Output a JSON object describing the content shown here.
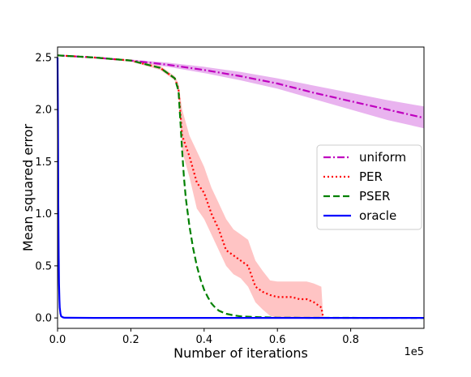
{
  "chart_data": {
    "type": "line",
    "title": "",
    "xlabel": "Number of iterations",
    "ylabel": "Mean squared error",
    "x_offset_label": "1e5",
    "xlim": [
      0,
      1.0
    ],
    "ylim": [
      -0.1,
      2.6
    ],
    "xticks": [
      0.0,
      0.2,
      0.4,
      0.6,
      0.8
    ],
    "xtick_labels": [
      "0.0",
      "0.2",
      "0.4",
      "0.6",
      "0.8"
    ],
    "yticks": [
      0.0,
      0.5,
      1.0,
      1.5,
      2.0,
      2.5
    ],
    "ytick_labels": [
      "0.0",
      "0.5",
      "1.0",
      "1.5",
      "2.0",
      "2.5"
    ],
    "grid": false,
    "legend_position": "center-right",
    "series": [
      {
        "name": "uniform",
        "color": "#bf00bf",
        "style": "dashdot",
        "x": [
          0,
          0.1,
          0.2,
          0.3,
          0.4,
          0.5,
          0.6,
          0.7,
          0.8,
          0.9,
          1.0
        ],
        "y": [
          2.52,
          2.5,
          2.47,
          2.43,
          2.38,
          2.32,
          2.25,
          2.16,
          2.08,
          2.0,
          1.92
        ],
        "band_upper": [
          2.52,
          2.5,
          2.48,
          2.45,
          2.41,
          2.36,
          2.3,
          2.23,
          2.16,
          2.09,
          2.03
        ],
        "band_lower": [
          2.52,
          2.49,
          2.46,
          2.41,
          2.35,
          2.28,
          2.2,
          2.1,
          2.0,
          1.9,
          1.82
        ]
      },
      {
        "name": "PER",
        "color": "#ff0000",
        "style": "dotted",
        "x": [
          0,
          0.1,
          0.2,
          0.28,
          0.32,
          0.33,
          0.34,
          0.36,
          0.38,
          0.4,
          0.42,
          0.44,
          0.46,
          0.48,
          0.5,
          0.52,
          0.54,
          0.56,
          0.58,
          0.6,
          0.62,
          0.64,
          0.66,
          0.68,
          0.7,
          0.72,
          0.725
        ],
        "y": [
          2.52,
          2.5,
          2.47,
          2.4,
          2.3,
          2.2,
          1.75,
          1.55,
          1.3,
          1.2,
          1.0,
          0.85,
          0.65,
          0.6,
          0.55,
          0.5,
          0.3,
          0.25,
          0.22,
          0.2,
          0.2,
          0.2,
          0.18,
          0.18,
          0.15,
          0.1,
          0.0
        ],
        "band_upper": [
          2.52,
          2.5,
          2.48,
          2.42,
          2.32,
          2.25,
          2.0,
          1.75,
          1.6,
          1.45,
          1.25,
          1.1,
          0.95,
          0.85,
          0.8,
          0.75,
          0.55,
          0.45,
          0.36,
          0.35,
          0.35,
          0.35,
          0.35,
          0.35,
          0.33,
          0.3,
          0.0
        ],
        "band_lower": [
          2.52,
          2.49,
          2.46,
          2.38,
          2.28,
          2.15,
          1.6,
          1.35,
          1.05,
          0.95,
          0.8,
          0.65,
          0.5,
          0.42,
          0.38,
          0.3,
          0.15,
          0.08,
          0.02,
          0.0,
          0.0,
          0.0,
          0.0,
          0.0,
          0.0,
          0.0,
          0.0
        ]
      },
      {
        "name": "PSER",
        "color": "#008000",
        "style": "dashed",
        "x": [
          0,
          0.1,
          0.2,
          0.28,
          0.32,
          0.33,
          0.335,
          0.34,
          0.345,
          0.35,
          0.36,
          0.37,
          0.38,
          0.39,
          0.4,
          0.41,
          0.42,
          0.43,
          0.44,
          0.46,
          0.48,
          0.5,
          0.55,
          0.6,
          0.7,
          1.0
        ],
        "y": [
          2.52,
          2.5,
          2.47,
          2.4,
          2.3,
          2.18,
          1.9,
          1.6,
          1.35,
          1.15,
          0.88,
          0.67,
          0.5,
          0.37,
          0.27,
          0.2,
          0.14,
          0.1,
          0.07,
          0.04,
          0.025,
          0.015,
          0.007,
          0.003,
          0.001,
          0.0
        ]
      },
      {
        "name": "oracle",
        "color": "#0000ff",
        "style": "solid",
        "x": [
          0,
          0.001,
          0.002,
          0.003,
          0.004,
          0.005,
          0.006,
          0.008,
          0.01,
          0.015,
          0.02,
          0.1,
          1.0
        ],
        "y": [
          2.5,
          1.9,
          1.1,
          0.6,
          0.33,
          0.18,
          0.1,
          0.04,
          0.015,
          0.005,
          0.002,
          0.0,
          0.0
        ]
      }
    ]
  }
}
